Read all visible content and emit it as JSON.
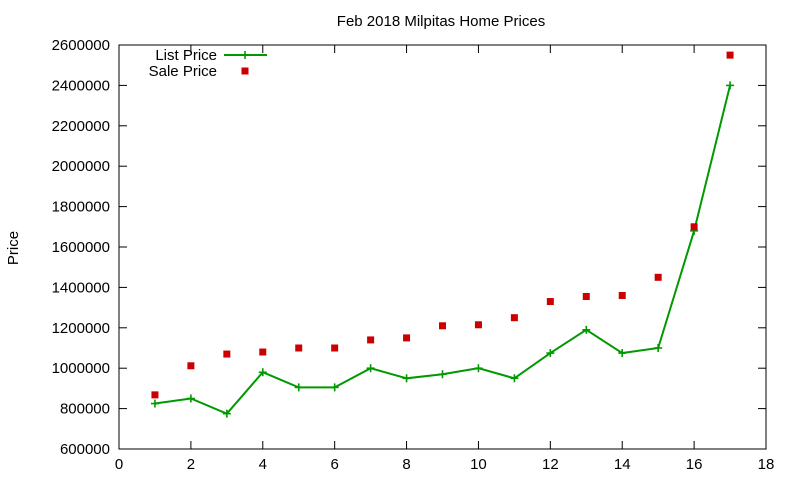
{
  "chart_data": {
    "type": "line",
    "title": "Feb 2018 Milpitas Home Prices",
    "xlabel": "",
    "ylabel": "Price",
    "xlim": [
      0,
      18
    ],
    "ylim": [
      600000,
      2600000
    ],
    "x_ticks": [
      0,
      2,
      4,
      6,
      8,
      10,
      12,
      14,
      16,
      18
    ],
    "y_ticks": [
      600000,
      800000,
      1000000,
      1200000,
      1400000,
      1600000,
      1800000,
      2000000,
      2200000,
      2400000,
      2600000
    ],
    "grid": false,
    "legend_position": "top-left",
    "series": [
      {
        "name": "List Price",
        "style": "lines+points",
        "marker": "plus",
        "color": "#009900",
        "x": [
          1,
          2,
          3,
          4,
          5,
          6,
          7,
          8,
          9,
          10,
          11,
          12,
          13,
          14,
          15,
          16,
          17
        ],
        "y": [
          825000,
          850000,
          775000,
          980000,
          905000,
          905000,
          1000000,
          950000,
          970000,
          1000000,
          950000,
          1075000,
          1190000,
          1075000,
          1100000,
          1680000,
          2400000
        ]
      },
      {
        "name": "Sale Price",
        "style": "points",
        "marker": "square",
        "color": "#cc0000",
        "x": [
          1,
          2,
          3,
          4,
          5,
          6,
          7,
          8,
          9,
          10,
          11,
          12,
          13,
          14,
          15,
          16,
          17
        ],
        "y": [
          868000,
          1012000,
          1070000,
          1080000,
          1100000,
          1100000,
          1140000,
          1150000,
          1210000,
          1215000,
          1250000,
          1330000,
          1355000,
          1360000,
          1450000,
          1700000,
          2550000
        ]
      }
    ]
  }
}
